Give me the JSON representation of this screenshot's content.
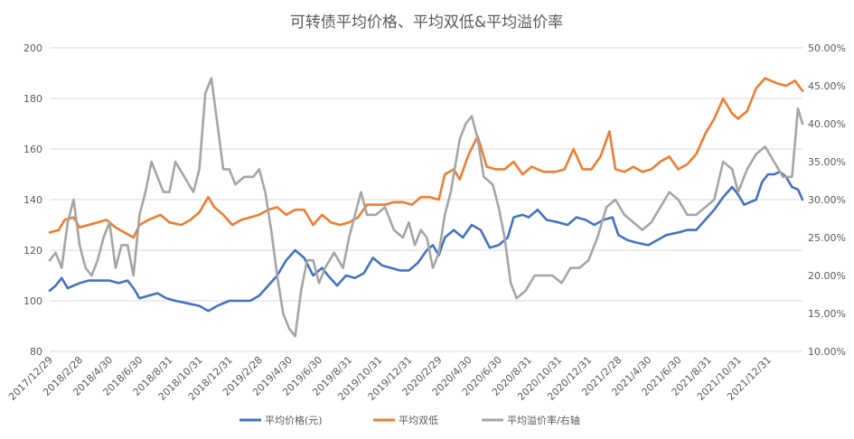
{
  "chart_data": {
    "type": "line",
    "title": "可转债平均价格、平均双低&平均溢价率",
    "grid": true,
    "legend_position": "bottom",
    "y_left": {
      "min": 80,
      "max": 200,
      "ticks": [
        "80",
        "100",
        "120",
        "140",
        "160",
        "180",
        "200"
      ]
    },
    "y_right": {
      "min": 10,
      "max": 50,
      "ticks": [
        "10.00%",
        "15.00%",
        "20.00%",
        "25.00%",
        "30.00%",
        "35.00%",
        "40.00%",
        "45.00%",
        "50.00%"
      ]
    },
    "x_labels": [
      "2017/12/29",
      "2018/2/28",
      "2018/4/30",
      "2018/6/30",
      "2018/8/31",
      "2018/10/31",
      "2018/12/31",
      "2019/2/28",
      "2019/4/30",
      "2019/6/30",
      "2019/8/31",
      "2019/10/31",
      "2019/12/31",
      "2020/2/29",
      "2020/4/30",
      "2020/6/30",
      "2020/8/31",
      "2020/10/31",
      "2020/12/31",
      "2021/2/28",
      "2021/4/30",
      "2021/6/30",
      "2021/8/31",
      "2021/10/31",
      "2021/12/31"
    ],
    "x_range": [
      0,
      25.15
    ],
    "series": [
      {
        "name": "平均价格(元)",
        "axis": "left",
        "color": "#4472C4",
        "points": [
          [
            0,
            104
          ],
          [
            0.2,
            106
          ],
          [
            0.4,
            109
          ],
          [
            0.6,
            105
          ],
          [
            0.8,
            106
          ],
          [
            1.0,
            107
          ],
          [
            1.3,
            108
          ],
          [
            1.6,
            108
          ],
          [
            2.0,
            108
          ],
          [
            2.3,
            107
          ],
          [
            2.6,
            108
          ],
          [
            2.8,
            105
          ],
          [
            3.0,
            101
          ],
          [
            3.3,
            102
          ],
          [
            3.6,
            103
          ],
          [
            3.9,
            101
          ],
          [
            4.2,
            100
          ],
          [
            4.6,
            99
          ],
          [
            5.0,
            98
          ],
          [
            5.3,
            96
          ],
          [
            5.6,
            98
          ],
          [
            6.0,
            100
          ],
          [
            6.3,
            100
          ],
          [
            6.7,
            100
          ],
          [
            7.0,
            102
          ],
          [
            7.3,
            106
          ],
          [
            7.6,
            110
          ],
          [
            7.9,
            116
          ],
          [
            8.2,
            120
          ],
          [
            8.5,
            117
          ],
          [
            8.8,
            110
          ],
          [
            9.1,
            113
          ],
          [
            9.3,
            110
          ],
          [
            9.6,
            106
          ],
          [
            9.9,
            110
          ],
          [
            10.2,
            109
          ],
          [
            10.5,
            111
          ],
          [
            10.8,
            117
          ],
          [
            11.1,
            114
          ],
          [
            11.4,
            113
          ],
          [
            11.7,
            112
          ],
          [
            12.0,
            112
          ],
          [
            12.3,
            115
          ],
          [
            12.6,
            120
          ],
          [
            12.8,
            122
          ],
          [
            13.0,
            118
          ],
          [
            13.2,
            125
          ],
          [
            13.5,
            128
          ],
          [
            13.8,
            125
          ],
          [
            14.1,
            130
          ],
          [
            14.4,
            128
          ],
          [
            14.7,
            121
          ],
          [
            15.0,
            122
          ],
          [
            15.3,
            125
          ],
          [
            15.5,
            133
          ],
          [
            15.8,
            134
          ],
          [
            16.0,
            133
          ],
          [
            16.3,
            136
          ],
          [
            16.6,
            132
          ],
          [
            17.0,
            131
          ],
          [
            17.3,
            130
          ],
          [
            17.6,
            133
          ],
          [
            17.9,
            132
          ],
          [
            18.2,
            130
          ],
          [
            18.5,
            132
          ],
          [
            18.8,
            133
          ],
          [
            19.0,
            126
          ],
          [
            19.3,
            124
          ],
          [
            19.6,
            123
          ],
          [
            20.0,
            122
          ],
          [
            20.3,
            124
          ],
          [
            20.6,
            126
          ],
          [
            21.0,
            127
          ],
          [
            21.3,
            128
          ],
          [
            21.6,
            128
          ],
          [
            21.9,
            132
          ],
          [
            22.2,
            136
          ],
          [
            22.5,
            141
          ],
          [
            22.8,
            145
          ],
          [
            23.0,
            142
          ],
          [
            23.2,
            138
          ],
          [
            23.4,
            139
          ],
          [
            23.6,
            140
          ],
          [
            23.8,
            147
          ],
          [
            24.0,
            150
          ],
          [
            24.2,
            150
          ],
          [
            24.4,
            151
          ],
          [
            24.6,
            149
          ],
          [
            24.8,
            145
          ],
          [
            25.0,
            144
          ],
          [
            25.15,
            140
          ]
        ]
      },
      {
        "name": "平均双低",
        "axis": "left",
        "color": "#ED7D31",
        "points": [
          [
            0,
            127
          ],
          [
            0.3,
            128
          ],
          [
            0.5,
            132
          ],
          [
            0.8,
            133
          ],
          [
            1.0,
            129
          ],
          [
            1.3,
            130
          ],
          [
            1.6,
            131
          ],
          [
            1.9,
            132
          ],
          [
            2.2,
            129
          ],
          [
            2.5,
            127
          ],
          [
            2.8,
            125
          ],
          [
            3.0,
            130
          ],
          [
            3.3,
            132
          ],
          [
            3.7,
            134
          ],
          [
            4.0,
            131
          ],
          [
            4.4,
            130
          ],
          [
            4.7,
            132
          ],
          [
            5.0,
            135
          ],
          [
            5.3,
            141
          ],
          [
            5.5,
            137
          ],
          [
            5.8,
            134
          ],
          [
            6.1,
            130
          ],
          [
            6.4,
            132
          ],
          [
            6.7,
            133
          ],
          [
            7.0,
            134
          ],
          [
            7.3,
            136
          ],
          [
            7.6,
            137
          ],
          [
            7.9,
            134
          ],
          [
            8.2,
            136
          ],
          [
            8.5,
            136
          ],
          [
            8.8,
            130
          ],
          [
            9.1,
            134
          ],
          [
            9.4,
            131
          ],
          [
            9.7,
            130
          ],
          [
            10.0,
            131
          ],
          [
            10.3,
            133
          ],
          [
            10.6,
            138
          ],
          [
            10.9,
            138
          ],
          [
            11.2,
            138
          ],
          [
            11.5,
            139
          ],
          [
            11.8,
            139
          ],
          [
            12.1,
            138
          ],
          [
            12.4,
            141
          ],
          [
            12.7,
            141
          ],
          [
            13.0,
            140
          ],
          [
            13.2,
            150
          ],
          [
            13.5,
            152
          ],
          [
            13.7,
            148
          ],
          [
            14.0,
            158
          ],
          [
            14.3,
            165
          ],
          [
            14.6,
            153
          ],
          [
            14.9,
            152
          ],
          [
            15.2,
            152
          ],
          [
            15.5,
            155
          ],
          [
            15.8,
            150
          ],
          [
            16.1,
            153
          ],
          [
            16.5,
            151
          ],
          [
            16.9,
            151
          ],
          [
            17.2,
            152
          ],
          [
            17.5,
            160
          ],
          [
            17.8,
            152
          ],
          [
            18.1,
            152
          ],
          [
            18.4,
            157
          ],
          [
            18.7,
            167
          ],
          [
            18.9,
            152
          ],
          [
            19.2,
            151
          ],
          [
            19.5,
            153
          ],
          [
            19.8,
            151
          ],
          [
            20.1,
            152
          ],
          [
            20.4,
            155
          ],
          [
            20.7,
            157
          ],
          [
            21.0,
            152
          ],
          [
            21.3,
            154
          ],
          [
            21.6,
            158
          ],
          [
            21.9,
            166
          ],
          [
            22.2,
            172
          ],
          [
            22.5,
            180
          ],
          [
            22.8,
            174
          ],
          [
            23.0,
            172
          ],
          [
            23.3,
            175
          ],
          [
            23.6,
            184
          ],
          [
            23.9,
            188
          ],
          [
            24.1,
            187
          ],
          [
            24.3,
            186
          ],
          [
            24.6,
            185
          ],
          [
            24.9,
            187
          ],
          [
            25.15,
            183
          ]
        ]
      },
      {
        "name": "平均溢价率/右轴",
        "axis": "right",
        "color": "#A5A5A5",
        "points": [
          [
            0,
            22
          ],
          [
            0.2,
            23
          ],
          [
            0.4,
            21
          ],
          [
            0.6,
            27
          ],
          [
            0.8,
            30
          ],
          [
            1.0,
            24
          ],
          [
            1.2,
            21
          ],
          [
            1.4,
            20
          ],
          [
            1.6,
            22
          ],
          [
            1.8,
            25
          ],
          [
            2.0,
            27
          ],
          [
            2.2,
            21
          ],
          [
            2.4,
            24
          ],
          [
            2.6,
            24
          ],
          [
            2.8,
            20
          ],
          [
            3.0,
            28
          ],
          [
            3.2,
            31
          ],
          [
            3.4,
            35
          ],
          [
            3.6,
            33
          ],
          [
            3.8,
            31
          ],
          [
            4.0,
            31
          ],
          [
            4.2,
            35
          ],
          [
            4.5,
            33
          ],
          [
            4.8,
            31
          ],
          [
            5.0,
            34
          ],
          [
            5.2,
            44
          ],
          [
            5.4,
            46
          ],
          [
            5.6,
            40
          ],
          [
            5.8,
            34
          ],
          [
            6.0,
            34
          ],
          [
            6.2,
            32
          ],
          [
            6.5,
            33
          ],
          [
            6.8,
            33
          ],
          [
            7.0,
            34
          ],
          [
            7.2,
            31
          ],
          [
            7.4,
            26
          ],
          [
            7.6,
            20
          ],
          [
            7.8,
            15
          ],
          [
            8.0,
            13
          ],
          [
            8.2,
            12
          ],
          [
            8.4,
            18
          ],
          [
            8.6,
            22
          ],
          [
            8.8,
            22
          ],
          [
            9.0,
            19
          ],
          [
            9.2,
            21
          ],
          [
            9.5,
            23
          ],
          [
            9.8,
            21
          ],
          [
            10.0,
            25
          ],
          [
            10.2,
            28
          ],
          [
            10.4,
            31
          ],
          [
            10.6,
            28
          ],
          [
            10.9,
            28
          ],
          [
            11.2,
            29
          ],
          [
            11.5,
            26
          ],
          [
            11.8,
            25
          ],
          [
            12.0,
            27
          ],
          [
            12.2,
            24
          ],
          [
            12.4,
            26
          ],
          [
            12.6,
            25
          ],
          [
            12.8,
            21
          ],
          [
            13.0,
            23
          ],
          [
            13.2,
            28
          ],
          [
            13.4,
            31
          ],
          [
            13.7,
            38
          ],
          [
            13.9,
            40
          ],
          [
            14.1,
            41
          ],
          [
            14.3,
            38
          ],
          [
            14.5,
            33
          ],
          [
            14.8,
            32
          ],
          [
            15.0,
            29
          ],
          [
            15.2,
            25
          ],
          [
            15.4,
            19
          ],
          [
            15.6,
            17
          ],
          [
            15.9,
            18
          ],
          [
            16.2,
            20
          ],
          [
            16.5,
            20
          ],
          [
            16.8,
            20
          ],
          [
            17.1,
            19
          ],
          [
            17.4,
            21
          ],
          [
            17.7,
            21
          ],
          [
            18.0,
            22
          ],
          [
            18.3,
            25
          ],
          [
            18.6,
            29
          ],
          [
            18.9,
            30
          ],
          [
            19.2,
            28
          ],
          [
            19.5,
            27
          ],
          [
            19.8,
            26
          ],
          [
            20.1,
            27
          ],
          [
            20.4,
            29
          ],
          [
            20.7,
            31
          ],
          [
            21.0,
            30
          ],
          [
            21.3,
            28
          ],
          [
            21.6,
            28
          ],
          [
            21.9,
            29
          ],
          [
            22.2,
            30
          ],
          [
            22.5,
            35
          ],
          [
            22.8,
            34
          ],
          [
            23.0,
            31
          ],
          [
            23.3,
            34
          ],
          [
            23.6,
            36
          ],
          [
            23.9,
            37
          ],
          [
            24.2,
            35
          ],
          [
            24.5,
            33
          ],
          [
            24.8,
            33
          ],
          [
            25.0,
            42
          ],
          [
            25.15,
            40
          ]
        ]
      }
    ]
  }
}
